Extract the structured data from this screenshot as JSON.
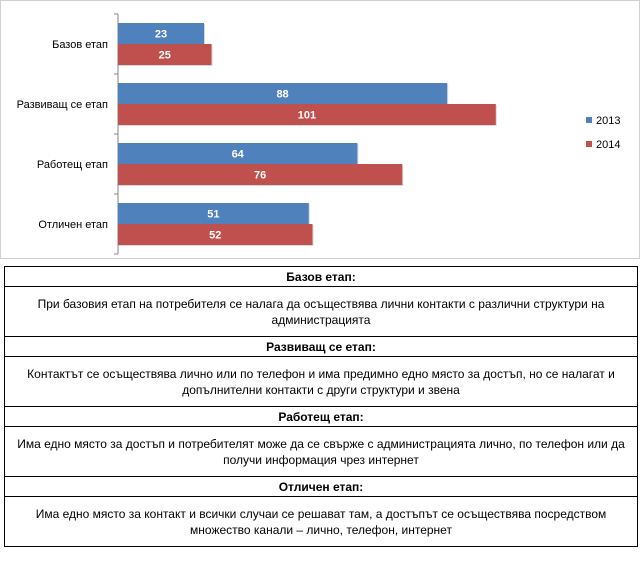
{
  "chart_data": {
    "type": "bar",
    "orientation": "horizontal",
    "categories": [
      "Базов етап",
      "Развиващ се етап",
      "Работещ етап",
      "Отличен етап"
    ],
    "series": [
      {
        "name": "2013",
        "values": [
          23,
          88,
          64,
          51
        ],
        "color": "#4f81bd"
      },
      {
        "name": "2014",
        "values": [
          25,
          101,
          76,
          52
        ],
        "color": "#c0504d"
      }
    ],
    "data_labels": true,
    "legend_position": "right",
    "grid": false,
    "xlim": [
      0,
      104
    ]
  },
  "table": {
    "rows": [
      {
        "heading": "Базов етап:",
        "text": "При базовия етап на потребителя се налага да осъществява лични контакти с различни структури на администрацията"
      },
      {
        "heading": "Развиващ се етап:",
        "text": "Контактът се осъществява лично или по телефон и има предимно едно място за достъп, но се налагат и допълнителни контакти с други структури и звена"
      },
      {
        "heading": "Работещ етап:",
        "text": "Има едно място за достъп и потребителят може да се свърже с администрацията лично, по телефон или да получи информация чрез интернет"
      },
      {
        "heading": "Отличен етап:",
        "text": "Има едно място за контакт и всички случаи се решават там, а достъпът се осъществява посредством множество канали – лично, телефон, интернет"
      }
    ]
  }
}
